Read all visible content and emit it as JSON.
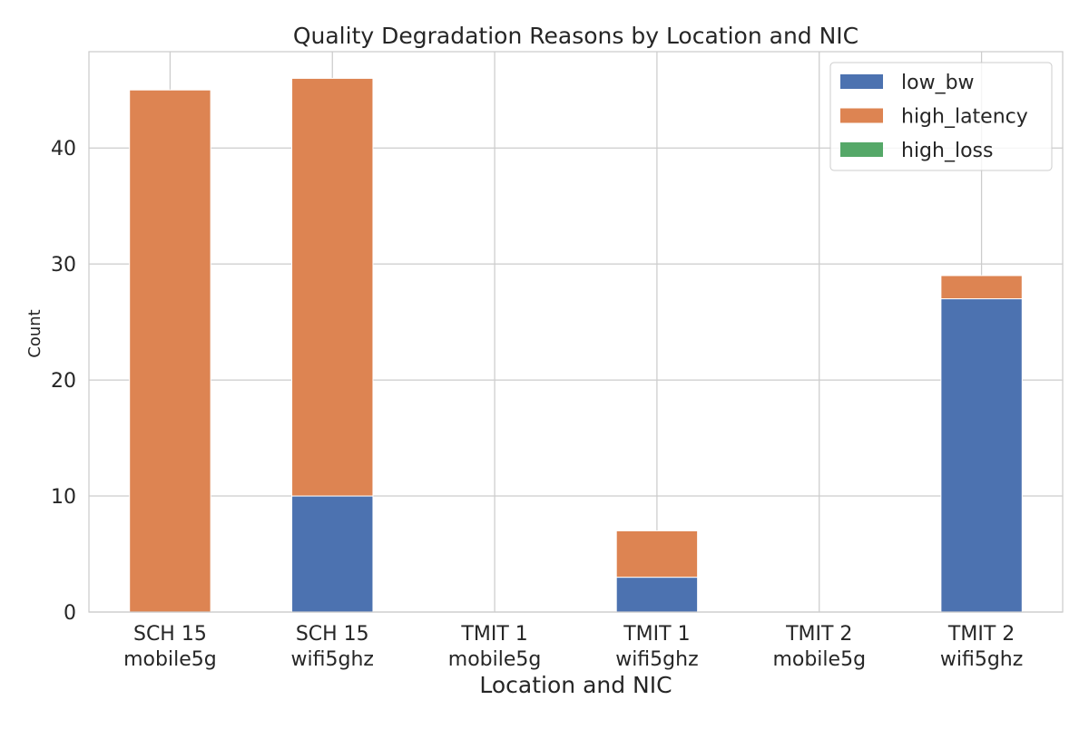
{
  "chart_data": {
    "type": "bar",
    "stacked": true,
    "title": "Quality Degradation Reasons by Location and NIC",
    "xlabel": "Location and NIC",
    "ylabel": "Count",
    "categories": [
      [
        "SCH 15",
        "mobile5g"
      ],
      [
        "SCH 15",
        "wifi5ghz"
      ],
      [
        "TMIT 1",
        "mobile5g"
      ],
      [
        "TMIT 1",
        "wifi5ghz"
      ],
      [
        "TMIT 2",
        "mobile5g"
      ],
      [
        "TMIT 2",
        "wifi5ghz"
      ]
    ],
    "series": [
      {
        "name": "low_bw",
        "color": "#4c72b0",
        "values": [
          0,
          10,
          0,
          3,
          0,
          27
        ]
      },
      {
        "name": "high_latency",
        "color": "#dd8452",
        "values": [
          45,
          36,
          0,
          4,
          0,
          2
        ]
      },
      {
        "name": "high_loss",
        "color": "#55a868",
        "values": [
          0,
          0,
          0,
          0,
          0,
          0
        ]
      }
    ],
    "ylim": [
      0,
      48.3
    ],
    "yticks": [
      0,
      10,
      20,
      30,
      40
    ],
    "grid": true,
    "legend_position": "top-right"
  }
}
